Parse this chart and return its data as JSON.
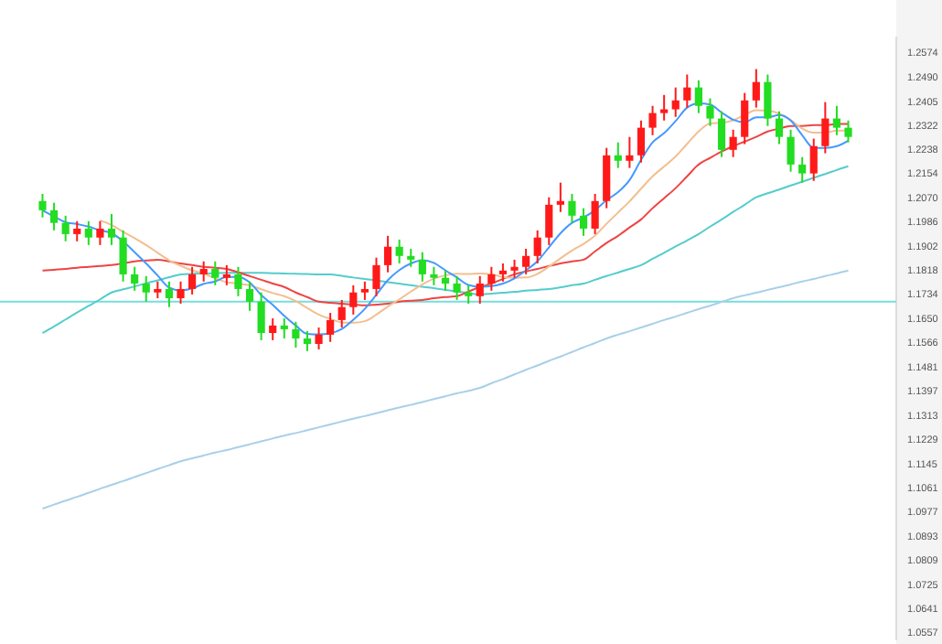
{
  "chart_data": {
    "type": "candlestick",
    "categories": [
      null,
      null,
      null,
      null,
      null,
      null,
      null,
      null,
      null,
      null,
      null,
      null,
      null,
      null,
      null,
      null,
      null,
      null,
      null,
      null,
      null,
      null,
      null,
      null,
      null,
      null,
      null,
      null,
      null,
      null,
      null,
      null,
      null,
      null,
      null,
      null,
      null,
      null,
      null,
      null,
      null,
      null,
      null,
      null,
      null,
      null,
      null,
      null,
      null,
      null,
      null,
      null,
      null,
      null,
      null,
      null,
      null,
      null,
      null,
      null,
      null,
      null,
      null,
      null,
      null,
      null,
      null,
      null,
      null,
      null,
      null
    ],
    "colors": [
      "#22dd22",
      "#22dd22",
      "#22dd22",
      "#ff1a1a",
      "#22dd22",
      "#ff1a1a",
      "#22dd22",
      "#22dd22",
      "#22dd22",
      "#22dd22",
      "#ff1a1a",
      "#22dd22",
      "#ff1a1a",
      "#ff1a1a",
      "#ff1a1a",
      "#22dd22",
      "#ff1a1a",
      "#22dd22",
      "#22dd22",
      "#22dd22",
      "#ff1a1a",
      "#22dd22",
      "#22dd22",
      "#22dd22",
      "#ff1a1a",
      "#ff1a1a",
      "#ff1a1a",
      "#ff1a1a",
      "#ff1a1a",
      "#ff1a1a",
      "#ff1a1a",
      "#22dd22",
      "#22dd22",
      "#22dd22",
      "#22dd22",
      "#22dd22",
      "#22dd22",
      "#22dd22",
      "#ff1a1a",
      "#ff1a1a",
      "#ff1a1a",
      "#ff1a1a",
      "#ff1a1a",
      "#ff1a1a",
      "#ff1a1a",
      "#ff1a1a",
      "#22dd22",
      "#22dd22",
      "#ff1a1a",
      "#ff1a1a",
      "#22dd22",
      "#ff1a1a",
      "#ff1a1a",
      "#ff1a1a",
      "#ff1a1a",
      "#ff1a1a",
      "#ff1a1a",
      "#22dd22",
      "#22dd22",
      "#22dd22",
      "#ff1a1a",
      "#ff1a1a",
      "#ff1a1a",
      "#22dd22",
      "#22dd22",
      "#22dd22",
      "#22dd22",
      "#ff1a1a",
      "#ff1a1a",
      "#22dd22",
      "#22dd22"
    ],
    "ohlc": [
      [
        1.2058,
        1.2083,
        1.2001,
        1.2026
      ],
      [
        1.2026,
        1.2052,
        1.1956,
        1.1982
      ],
      [
        1.1982,
        1.2007,
        1.1918,
        1.1943
      ],
      [
        1.1943,
        1.1988,
        1.1918,
        1.1962
      ],
      [
        1.1962,
        1.1988,
        1.1905,
        1.1931
      ],
      [
        1.1931,
        1.1988,
        1.1905,
        1.1962
      ],
      [
        1.1962,
        1.2013,
        1.1905,
        1.1931
      ],
      [
        1.1931,
        1.1956,
        1.1778,
        1.1803
      ],
      [
        1.1803,
        1.1829,
        1.1746,
        1.1771
      ],
      [
        1.1771,
        1.1797,
        1.1708,
        1.174
      ],
      [
        1.174,
        1.1778,
        1.172,
        1.1752
      ],
      [
        1.1752,
        1.1778,
        1.1689,
        1.172
      ],
      [
        1.172,
        1.1778,
        1.1701,
        1.1752
      ],
      [
        1.1752,
        1.1829,
        1.1733,
        1.1803
      ],
      [
        1.1803,
        1.1848,
        1.1778,
        1.1822
      ],
      [
        1.1822,
        1.1848,
        1.1765,
        1.1791
      ],
      [
        1.1791,
        1.1835,
        1.1765,
        1.1803
      ],
      [
        1.1803,
        1.1829,
        1.1727,
        1.1752
      ],
      [
        1.1752,
        1.1778,
        1.1676,
        1.1708
      ],
      [
        1.1708,
        1.174,
        1.1574,
        1.1599
      ],
      [
        1.1599,
        1.165,
        1.1574,
        1.1625
      ],
      [
        1.1625,
        1.165,
        1.158,
        1.1612
      ],
      [
        1.1612,
        1.1638,
        1.1548,
        1.158
      ],
      [
        1.158,
        1.1606,
        1.1536,
        1.1561
      ],
      [
        1.1561,
        1.1618,
        1.1542,
        1.1593
      ],
      [
        1.1593,
        1.1669,
        1.1568,
        1.1644
      ],
      [
        1.1644,
        1.1714,
        1.1618,
        1.1689
      ],
      [
        1.1689,
        1.1765,
        1.1663,
        1.174
      ],
      [
        1.174,
        1.1778,
        1.1714,
        1.1752
      ],
      [
        1.1752,
        1.1861,
        1.1727,
        1.1835
      ],
      [
        1.1835,
        1.1937,
        1.181,
        1.1899
      ],
      [
        1.1899,
        1.1924,
        1.1841,
        1.1867
      ],
      [
        1.1867,
        1.1892,
        1.1829,
        1.1854
      ],
      [
        1.1854,
        1.188,
        1.1778,
        1.1803
      ],
      [
        1.1803,
        1.1829,
        1.1765,
        1.1791
      ],
      [
        1.1791,
        1.1816,
        1.1746,
        1.1771
      ],
      [
        1.1771,
        1.1797,
        1.1714,
        1.174
      ],
      [
        1.174,
        1.1765,
        1.1701,
        1.1727
      ],
      [
        1.1727,
        1.1797,
        1.1701,
        1.1771
      ],
      [
        1.1771,
        1.1829,
        1.1746,
        1.1803
      ],
      [
        1.1803,
        1.1841,
        1.1778,
        1.1816
      ],
      [
        1.1816,
        1.1854,
        1.1791,
        1.1829
      ],
      [
        1.1829,
        1.1892,
        1.1803,
        1.1867
      ],
      [
        1.1867,
        1.1956,
        1.1841,
        1.1931
      ],
      [
        1.1931,
        1.2071,
        1.1905,
        1.2045
      ],
      [
        1.2045,
        1.2122,
        1.202,
        1.2058
      ],
      [
        1.2058,
        1.2083,
        1.1982,
        1.2007
      ],
      [
        1.2007,
        1.2033,
        1.1937,
        1.1962
      ],
      [
        1.1962,
        1.2083,
        1.1943,
        1.2058
      ],
      [
        1.2058,
        1.2243,
        1.2033,
        1.2217
      ],
      [
        1.2217,
        1.2262,
        1.2173,
        1.2198
      ],
      [
        1.2198,
        1.2281,
        1.2173,
        1.2217
      ],
      [
        1.2217,
        1.2338,
        1.2192,
        1.2313
      ],
      [
        1.2313,
        1.2389,
        1.2287,
        1.2364
      ],
      [
        1.2364,
        1.2427,
        1.2338,
        1.2377
      ],
      [
        1.2377,
        1.2453,
        1.2351,
        1.2408
      ],
      [
        1.2408,
        1.2498,
        1.2383,
        1.2453
      ],
      [
        1.2453,
        1.2478,
        1.2364,
        1.2389
      ],
      [
        1.2389,
        1.2415,
        1.2319,
        1.2345
      ],
      [
        1.2345,
        1.237,
        1.2211,
        1.2236
      ],
      [
        1.2236,
        1.2306,
        1.2211,
        1.2281
      ],
      [
        1.2281,
        1.2434,
        1.2256,
        1.2408
      ],
      [
        1.2408,
        1.2517,
        1.2383,
        1.2472
      ],
      [
        1.2472,
        1.2498,
        1.2319,
        1.2345
      ],
      [
        1.2345,
        1.237,
        1.2256,
        1.2281
      ],
      [
        1.2281,
        1.2306,
        1.216,
        1.2185
      ],
      [
        1.2185,
        1.2211,
        1.2122,
        1.2154
      ],
      [
        1.2154,
        1.2275,
        1.2128,
        1.2249
      ],
      [
        1.2249,
        1.2402,
        1.2224,
        1.2345
      ],
      [
        1.2345,
        1.2389,
        1.2287,
        1.2313
      ],
      [
        1.2313,
        1.2338,
        1.2262,
        1.2281
      ]
    ],
    "series": [
      {
        "type": "line",
        "color": "#a8d0e8",
        "values": [
          1.0988,
          1.1002,
          1.1016,
          1.1029,
          1.1043,
          1.1057,
          1.1071,
          1.1084,
          1.1098,
          1.1112,
          1.1126,
          1.1139,
          1.1153,
          1.1163,
          1.1173,
          1.1183,
          1.1192,
          1.1202,
          1.1212,
          1.1222,
          1.1232,
          1.1242,
          1.1251,
          1.1261,
          1.1271,
          1.1281,
          1.1291,
          1.1301,
          1.131,
          1.132,
          1.133,
          1.134,
          1.1349,
          1.1359,
          1.1369,
          1.1379,
          1.1389,
          1.1398,
          1.1408,
          1.1424,
          1.1439,
          1.1455,
          1.1471,
          1.1486,
          1.1502,
          1.1517,
          1.1533,
          1.1549,
          1.1564,
          1.158,
          1.1593,
          1.1605,
          1.1618,
          1.1631,
          1.1644,
          1.1656,
          1.1669,
          1.1682,
          1.1694,
          1.1707,
          1.172,
          1.173,
          1.1739,
          1.1749,
          1.1758,
          1.1768,
          1.1778,
          1.1787,
          1.1797,
          1.1806,
          1.1816
        ]
      },
      {
        "type": "line",
        "color": "#55cccc",
        "values": [
          1.1599,
          1.1622,
          1.1646,
          1.167,
          1.1693,
          1.1716,
          1.174,
          1.1751,
          1.1761,
          1.1772,
          1.1782,
          1.1793,
          1.1803,
          1.1805,
          1.1806,
          1.1807,
          1.1808,
          1.1808,
          1.1808,
          1.1808,
          1.1807,
          1.1806,
          1.1805,
          1.1804,
          1.1803,
          1.1803,
          1.1798,
          1.1792,
          1.1787,
          1.1782,
          1.1776,
          1.1771,
          1.1765,
          1.176,
          1.1755,
          1.1749,
          1.1744,
          1.1738,
          1.1733,
          1.1736,
          1.1739,
          1.1742,
          1.1746,
          1.1749,
          1.1752,
          1.1758,
          1.1765,
          1.1771,
          1.1784,
          1.1797,
          1.1809,
          1.1822,
          1.1835,
          1.1857,
          1.1878,
          1.19,
          1.1921,
          1.1943,
          1.1969,
          1.1994,
          1.202,
          1.2045,
          1.2071,
          1.2085,
          1.2098,
          1.2112,
          1.2125,
          1.2139,
          1.2152,
          1.2166,
          1.2179
        ]
      },
      {
        "type": "line",
        "color": "#ee4444",
        "values": [
          1.1816,
          1.1819,
          1.1822,
          1.1826,
          1.1829,
          1.1832,
          1.1835,
          1.1841,
          1.1848,
          1.1851,
          1.1854,
          1.1848,
          1.1841,
          1.1835,
          1.1829,
          1.1826,
          1.1822,
          1.181,
          1.1797,
          1.1784,
          1.1771,
          1.1759,
          1.174,
          1.1724,
          1.1708,
          1.1704,
          1.1701,
          1.1698,
          1.1695,
          1.1698,
          1.1701,
          1.1708,
          1.1711,
          1.1714,
          1.172,
          1.1724,
          1.1727,
          1.1743,
          1.1759,
          1.1771,
          1.1787,
          1.1803,
          1.1813,
          1.1822,
          1.1832,
          1.1841,
          1.1848,
          1.1854,
          1.1883,
          1.1912,
          1.1937,
          1.1966,
          1.1994,
          1.2033,
          1.2068,
          1.2103,
          1.2144,
          1.2185,
          1.2208,
          1.223,
          1.2249,
          1.2265,
          1.2281,
          1.23,
          1.231,
          1.2319,
          1.2319,
          1.2322,
          1.2322,
          1.2326,
          1.2326
        ]
      },
      {
        "type": "line",
        "color": "#f2bf90",
        "values": [
          null,
          null,
          null,
          null,
          null,
          1.1991,
          1.1975,
          1.1951,
          1.1929,
          1.1905,
          1.1878,
          1.1852,
          1.1833,
          1.1817,
          1.1806,
          1.1789,
          1.1776,
          1.1771,
          1.1765,
          1.1751,
          1.1738,
          1.1727,
          1.171,
          1.1686,
          1.1663,
          1.1648,
          1.1636,
          1.1635,
          1.164,
          1.1663,
          1.1691,
          1.1716,
          1.1743,
          1.1768,
          1.1788,
          1.18,
          1.1805,
          1.1804,
          1.1806,
          1.1803,
          1.1794,
          1.1791,
          1.1792,
          1.1805,
          1.183,
          1.1859,
          1.1886,
          1.1909,
          1.1938,
          1.1979,
          1.2018,
          1.2057,
          1.2101,
          1.2144,
          1.2178,
          1.2213,
          1.2257,
          1.23,
          1.2328,
          1.233,
          1.2339,
          1.2358,
          1.2374,
          1.2372,
          1.2362,
          1.234,
          1.231,
          1.2296,
          1.2296,
          1.2303,
          1.2303
        ]
      },
      {
        "type": "line",
        "color": "#4499ff",
        "values": [
          1.2026,
          1.2004,
          1.1984,
          1.1978,
          1.1969,
          1.1956,
          1.1946,
          1.1918,
          1.188,
          1.1841,
          1.1799,
          1.1757,
          1.1747,
          1.1754,
          1.177,
          1.1778,
          1.1794,
          1.1794,
          1.1775,
          1.1731,
          1.1697,
          1.1659,
          1.1625,
          1.1596,
          1.1594,
          1.1598,
          1.1613,
          1.1645,
          1.1683,
          1.1732,
          1.1783,
          1.1818,
          1.1841,
          1.1852,
          1.1843,
          1.1817,
          1.1792,
          1.1766,
          1.176,
          1.1762,
          1.1771,
          1.1789,
          1.1817,
          1.1849,
          1.1897,
          1.1946,
          1.1982,
          1.2001,
          1.2026,
          1.2061,
          1.2089,
          1.2131,
          1.2201,
          1.2262,
          1.2294,
          1.2336,
          1.2383,
          1.2398,
          1.2394,
          1.2366,
          1.2341,
          1.2332,
          1.2349,
          1.2349,
          1.2357,
          1.2338,
          1.2287,
          1.2243,
          1.2243,
          1.2249,
          1.2268
        ]
      }
    ],
    "ref_lines": [
      {
        "axis": "y",
        "value": 1.1708,
        "color": "#77dddd"
      }
    ],
    "ylim": [
      1.053,
      1.263
    ],
    "yticks": [
      1.2574,
      {
        "value": 1.249,
        "label": "1.2490"
      },
      1.2405,
      1.2322,
      1.2238,
      1.2154,
      {
        "value": 1.207,
        "label": "1.2070"
      },
      1.1986,
      1.1902,
      1.1818,
      1.1734,
      {
        "value": 1.165,
        "label": "1.1650"
      },
      1.1566,
      1.1481,
      1.1397,
      1.1313,
      1.1229,
      1.1145,
      1.1061,
      1.0977,
      1.0893,
      1.0809,
      1.0725,
      1.0641,
      1.0557
    ],
    "tick_labels": "y"
  }
}
